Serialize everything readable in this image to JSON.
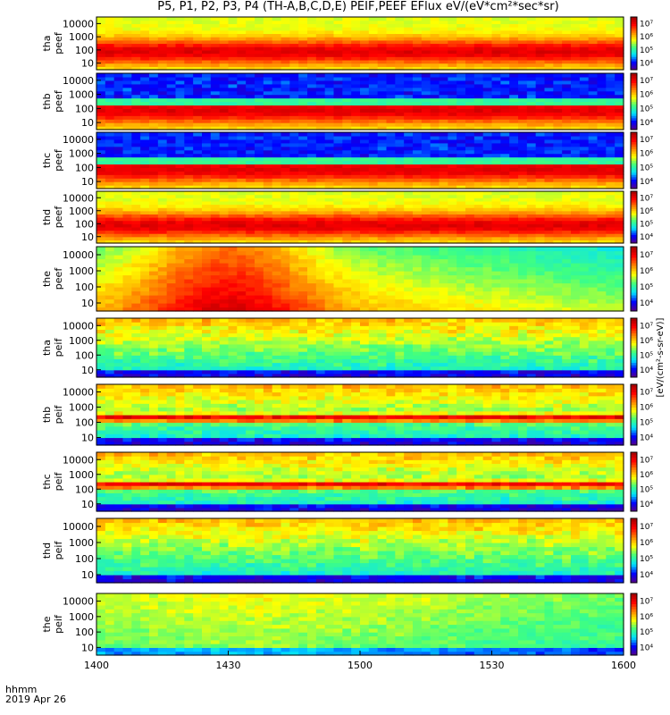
{
  "title": "P5, P1, P2, P3, P4 (TH-A,B,C,D,E) PEIF,PEEF EFlux eV/(eV*cm²*sec*sr)",
  "footer": {
    "time_label": "hhmm",
    "date_label": "2019 Apr 26"
  },
  "colorbar_unit": "[eV/(cm²-s-sr-eV)]",
  "chart_data": {
    "type": "heatmap",
    "x_tick_labels": [
      "1400",
      "1430",
      "1500",
      "1530",
      "1600"
    ],
    "xlim": [
      "1400",
      "1600"
    ],
    "y_scale": "log",
    "y_tick_labels": [
      "10",
      "100",
      "1000",
      "10000"
    ],
    "colorbar_tick_labels": [
      "10⁴",
      "10⁵",
      "10⁶",
      "10⁷"
    ],
    "colormap": [
      "#5a0080",
      "#0000ff",
      "#00e0ff",
      "#40ff80",
      "#ffff00",
      "#ff8000",
      "#ff0000",
      "#a00000"
    ],
    "panels": [
      {
        "probe": "tha",
        "product": "peef",
        "label": "tha peef",
        "kind": "electron"
      },
      {
        "probe": "thb",
        "product": "peef",
        "label": "thb peef",
        "kind": "electron"
      },
      {
        "probe": "thc",
        "product": "peef",
        "label": "thc peef",
        "kind": "electron"
      },
      {
        "probe": "thd",
        "product": "peef",
        "label": "thd peef",
        "kind": "electron"
      },
      {
        "probe": "the",
        "product": "peef",
        "label": "the peef",
        "kind": "electron"
      },
      {
        "probe": "tha",
        "product": "peif",
        "label": "tha peif",
        "kind": "ion"
      },
      {
        "probe": "thb",
        "product": "peif",
        "label": "thb peif",
        "kind": "ion"
      },
      {
        "probe": "thc",
        "product": "peif",
        "label": "thc peif",
        "kind": "ion"
      },
      {
        "probe": "thd",
        "product": "peif",
        "label": "thd peif",
        "kind": "ion"
      },
      {
        "probe": "the",
        "product": "peif",
        "label": "the peif",
        "kind": "ion"
      }
    ]
  }
}
